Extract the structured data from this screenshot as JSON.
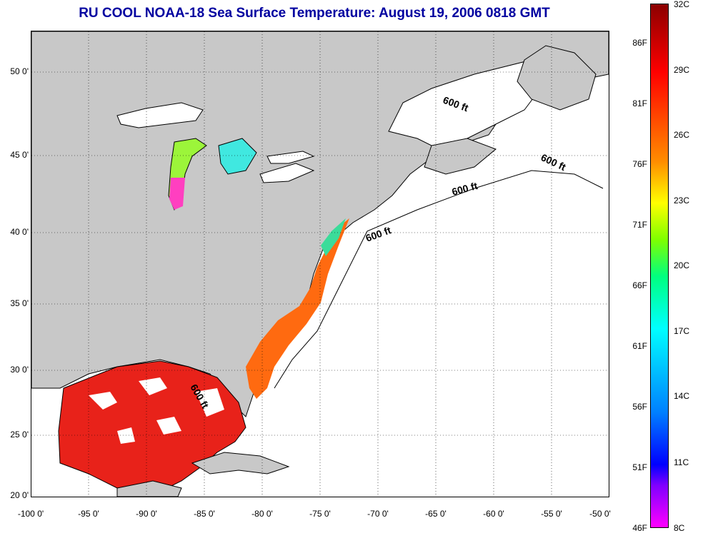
{
  "title": "RU COOL  NOAA-18  Sea Surface Temperature:  August 19, 2006 0818 GMT",
  "colors": {
    "title": "#0000a0",
    "land": "#c8c8c8",
    "no_data": "#ffffff",
    "gulf_sst": "#e8221a",
    "coast_sst": "#ff6a10"
  },
  "map": {
    "x_ticks": [
      "-100 0'",
      "-95 0'",
      "-90 0'",
      "-85 0'",
      "-80 0'",
      "-75 0'",
      "-70 0'",
      "-65 0'",
      "-60 0'",
      "-55 0'",
      "-50 0'"
    ],
    "y_ticks": [
      "50 0'",
      "45 0'",
      "40 0'",
      "35 0'",
      "30 0'",
      "25 0'",
      "20 0'"
    ],
    "grid": "dotted",
    "contour_labels": [
      "600 ft",
      "600 ft",
      "600 ft",
      "600 ft",
      "600 ft"
    ]
  },
  "colorbar": {
    "fahrenheit": [
      "86F",
      "81F",
      "76F",
      "71F",
      "66F",
      "61F",
      "56F",
      "51F",
      "46F"
    ],
    "celsius": [
      "32C",
      "29C",
      "26C",
      "23C",
      "20C",
      "17C",
      "14C",
      "11C",
      "8C"
    ]
  }
}
